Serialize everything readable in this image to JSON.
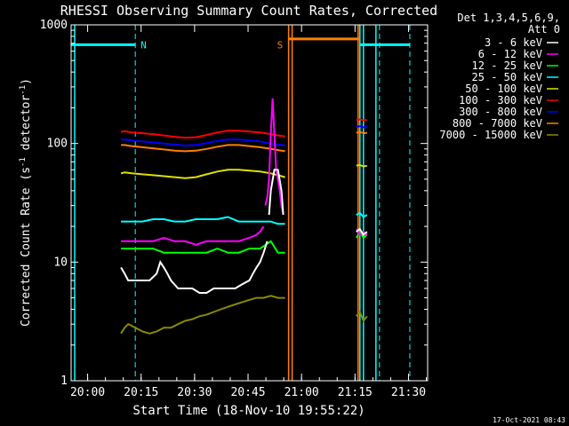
{
  "chart_data": {
    "type": "line",
    "title": "RHESSI Observing Summary Count Rates, Corrected",
    "xlabel": "Start Time (18-Nov-10 19:55:22)",
    "ylabel_main": "Corrected Count Rate (s",
    "ylabel_sup1": "-1",
    "ylabel_mid": " detector",
    "ylabel_sup2": "-1",
    "ylabel_end": ")",
    "ylabel": "Corrected Count Rate (s-1 detector-1)",
    "x_unit": "minutes after 19:55:22",
    "xlim": [
      0,
      100
    ],
    "ylim": [
      1,
      1000
    ],
    "yscale": "log",
    "x_ticks": [
      {
        "value": 4.63,
        "label": "20:00"
      },
      {
        "value": 19.63,
        "label": "20:15"
      },
      {
        "value": 34.63,
        "label": "20:30"
      },
      {
        "value": 49.63,
        "label": "20:45"
      },
      {
        "value": 64.63,
        "label": "21:00"
      },
      {
        "value": 79.63,
        "label": "21:15"
      },
      {
        "value": 94.63,
        "label": "21:30"
      }
    ],
    "y_ticks": [
      {
        "value": 1,
        "label": "1"
      },
      {
        "value": 10,
        "label": "10"
      },
      {
        "value": 100,
        "label": "100"
      },
      {
        "value": 1000,
        "label": "1000"
      }
    ],
    "legend_header": [
      "Det 1,3,4,5,6,9,",
      "Att 0"
    ],
    "series": [
      {
        "name": "3 - 6 keV",
        "color": "#ffffff",
        "segments": [
          {
            "x": [
              14,
              15,
              16,
              18,
              20,
              22,
              24,
              25,
              26,
              27,
              28,
              30,
              32,
              34,
              36,
              38,
              40,
              42,
              44,
              46,
              48,
              50,
              51,
              52,
              53,
              54,
              55
            ],
            "y": [
              9,
              8,
              7,
              7,
              7,
              7,
              8,
              10,
              9,
              8,
              7,
              6,
              6,
              6,
              5.5,
              5.5,
              6,
              6,
              6,
              6,
              6.5,
              7,
              8,
              9,
              10,
              12,
              15
            ]
          },
          {
            "x": [
              55.5,
              56,
              57,
              58,
              59,
              59.5
            ],
            "y": [
              25,
              40,
              60,
              60,
              40,
              25
            ]
          },
          {
            "x": [
              80,
              81,
              82,
              83
            ],
            "y": [
              18,
              19,
              17,
              18
            ]
          }
        ]
      },
      {
        "name": "6 - 12 keV",
        "color": "#ff00ff",
        "segments": [
          {
            "x": [
              14,
              15,
              17,
              20,
              23,
              26,
              29,
              32,
              35,
              38,
              41,
              44,
              47,
              50,
              52,
              53,
              54
            ],
            "y": [
              15,
              15,
              15,
              15,
              15,
              16,
              15,
              15,
              14,
              15,
              15,
              15,
              15,
              16,
              17,
              18,
              20
            ]
          },
          {
            "x": [
              54.5,
              55,
              55.5,
              56,
              56.5,
              57,
              57.5,
              58,
              58.5,
              59,
              59.5
            ],
            "y": [
              30,
              35,
              50,
              120,
              240,
              120,
              60,
              50,
              40,
              30,
              25
            ]
          },
          {
            "x": [
              80,
              81,
              82,
              83
            ],
            "y": [
              19,
              17,
              18,
              17
            ]
          }
        ]
      },
      {
        "name": "12 - 25 keV",
        "color": "#00ff00",
        "segments": [
          {
            "x": [
              14,
              15,
              17,
              20,
              23,
              26,
              29,
              32,
              35,
              38,
              41,
              44,
              47,
              50,
              53,
              56,
              58,
              60
            ],
            "y": [
              13,
              13,
              13,
              13,
              13,
              12,
              12,
              12,
              12,
              12,
              13,
              12,
              12,
              13,
              13,
              15,
              12,
              12
            ]
          },
          {
            "x": [
              80,
              81,
              82,
              83
            ],
            "y": [
              16,
              18,
              16,
              17
            ]
          }
        ]
      },
      {
        "name": "25 - 50 keV",
        "color": "#00ffff",
        "segments": [
          {
            "x": [
              14,
              15,
              17,
              20,
              23,
              26,
              29,
              32,
              35,
              38,
              41,
              44,
              47,
              50,
              53,
              56,
              58,
              60
            ],
            "y": [
              22,
              22,
              22,
              22,
              23,
              23,
              22,
              22,
              23,
              23,
              23,
              24,
              22,
              22,
              22,
              22,
              21,
              21
            ]
          },
          {
            "x": [
              80,
              81,
              82,
              83
            ],
            "y": [
              25,
              26,
              24,
              25
            ]
          }
        ]
      },
      {
        "name": "50 - 100 keV",
        "color": "#e0e000",
        "segments": [
          {
            "x": [
              14,
              15,
              17,
              20,
              23,
              26,
              29,
              32,
              35,
              38,
              41,
              44,
              47,
              50,
              53,
              56,
              58,
              60
            ],
            "y": [
              56,
              57,
              56,
              55,
              54,
              53,
              52,
              51,
              52,
              55,
              58,
              60,
              60,
              59,
              58,
              56,
              54,
              52
            ]
          },
          {
            "x": [
              80,
              81,
              82,
              83
            ],
            "y": [
              65,
              66,
              64,
              65
            ]
          }
        ]
      },
      {
        "name": "100 - 300 keV",
        "color": "#ff0000",
        "segments": [
          {
            "x": [
              14,
              15,
              17,
              20,
              23,
              26,
              29,
              32,
              35,
              38,
              41,
              44,
              47,
              50,
              53,
              56,
              58,
              60
            ],
            "y": [
              125,
              127,
              124,
              122,
              120,
              117,
              114,
              112,
              113,
              118,
              124,
              128,
              128,
              126,
              124,
              120,
              117,
              115
            ]
          },
          {
            "x": [
              80,
              81,
              82,
              83
            ],
            "y": [
              158,
              160,
              157,
              158
            ]
          }
        ]
      },
      {
        "name": "300 - 800 keV",
        "color": "#0000ff",
        "segments": [
          {
            "x": [
              14,
              15,
              17,
              20,
              23,
              26,
              29,
              32,
              35,
              38,
              41,
              44,
              47,
              50,
              53,
              56,
              58,
              60
            ],
            "y": [
              108,
              108,
              106,
              104,
              102,
              100,
              98,
              96,
              97,
              101,
              105,
              108,
              108,
              106,
              104,
              100,
              98,
              96
            ]
          },
          {
            "x": [
              80,
              81,
              82,
              83
            ],
            "y": [
              138,
              140,
              137,
              138
            ]
          }
        ]
      },
      {
        "name": "800 - 7000 keV",
        "color": "#ff8000",
        "segments": [
          {
            "x": [
              14,
              15,
              17,
              20,
              23,
              26,
              29,
              32,
              35,
              38,
              41,
              44,
              47,
              50,
              53,
              56,
              58,
              60
            ],
            "y": [
              97,
              97,
              95,
              93,
              91,
              89,
              87,
              86,
              87,
              90,
              94,
              97,
              97,
              95,
              93,
              90,
              88,
              86
            ]
          },
          {
            "x": [
              80,
              81,
              82,
              83
            ],
            "y": [
              123,
              125,
              122,
              123
            ]
          }
        ]
      },
      {
        "name": "7000 - 15000 keV",
        "color": "#8a8a00",
        "segments": [
          {
            "x": [
              14,
              15,
              16,
              18,
              20,
              22,
              24,
              26,
              28,
              30,
              32,
              34,
              36,
              38,
              40,
              42,
              44,
              46,
              48,
              50,
              52,
              54,
              56,
              58,
              60
            ],
            "y": [
              2.5,
              2.8,
              3,
              2.8,
              2.6,
              2.5,
              2.6,
              2.8,
              2.8,
              3,
              3.2,
              3.3,
              3.5,
              3.6,
              3.8,
              4,
              4.2,
              4.4,
              4.6,
              4.8,
              5,
              5,
              5.2,
              5,
              5
            ]
          },
          {
            "x": [
              80,
              81,
              82,
              83
            ],
            "y": [
              3.5,
              3.8,
              3.2,
              3.5
            ]
          }
        ]
      }
    ],
    "markers": [
      {
        "x": 18,
        "label": "N",
        "color": "#00ffff"
      },
      {
        "x": 61,
        "label": "S",
        "color": "#ff8000"
      },
      {
        "x": 86.5,
        "label": "",
        "color": "#00ffff"
      },
      {
        "x": 95,
        "label": "",
        "color": "#00ffff"
      }
    ],
    "cyan_bars": [
      {
        "x0": 0,
        "x1": 18,
        "y": 680
      },
      {
        "x0": 81,
        "x1": 95,
        "y": 680
      }
    ],
    "orange_bars": [
      {
        "x0": 61,
        "x1": 81,
        "y": 760
      }
    ],
    "vertical_lines": [
      {
        "x": 1,
        "color": "#00ffff"
      },
      {
        "x": 81,
        "color": "#00ffff"
      },
      {
        "x": 82,
        "color": "#00ffff"
      },
      {
        "x": 85.5,
        "color": "#00ffff"
      },
      {
        "x": 61,
        "color": "#ff8000"
      },
      {
        "x": 62,
        "color": "#ff8000"
      },
      {
        "x": 80.5,
        "color": "#ff8000"
      }
    ]
  },
  "footer_timestamp": "17-Oct-2021 08:43"
}
